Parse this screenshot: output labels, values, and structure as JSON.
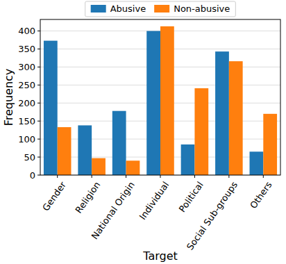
{
  "chart_data": {
    "type": "bar",
    "x_label": "Target",
    "y_label": "Frequency",
    "categories": [
      "Gender",
      "Religion",
      "National Origin",
      "Individual",
      "Political",
      "Social Sub-groups",
      "Others"
    ],
    "series": [
      {
        "name": "Abusive",
        "color": "#1f77b4",
        "values": [
          373,
          138,
          178,
          400,
          85,
          343,
          65
        ]
      },
      {
        "name": "Non-abusive",
        "color": "#ff7f0e",
        "values": [
          133,
          47,
          40,
          413,
          241,
          316,
          170
        ]
      }
    ],
    "ylim": [
      0,
      432
    ],
    "yticks": [
      0,
      50,
      100,
      150,
      200,
      250,
      300,
      350,
      400
    ],
    "grid": true,
    "legend": "upper center"
  }
}
